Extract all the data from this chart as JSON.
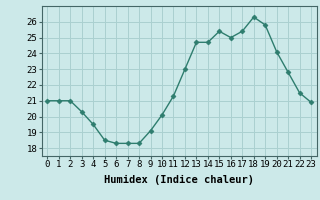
{
  "x": [
    0,
    1,
    2,
    3,
    4,
    5,
    6,
    7,
    8,
    9,
    10,
    11,
    12,
    13,
    14,
    15,
    16,
    17,
    18,
    19,
    20,
    21,
    22,
    23
  ],
  "y": [
    21,
    21,
    21,
    20.3,
    19.5,
    18.5,
    18.3,
    18.3,
    18.3,
    19.1,
    20.1,
    21.3,
    23.0,
    24.7,
    24.7,
    25.4,
    25.0,
    25.4,
    26.3,
    25.8,
    24.1,
    22.8,
    21.5,
    20.9
  ],
  "line_color": "#2e7d6e",
  "marker": "D",
  "marker_size": 2.5,
  "bg_color": "#cce9e9",
  "grid_color": "#aad0d0",
  "xlabel": "Humidex (Indice chaleur)",
  "ylim": [
    17.5,
    27.0
  ],
  "xlim": [
    -0.5,
    23.5
  ],
  "yticks": [
    18,
    19,
    20,
    21,
    22,
    23,
    24,
    25,
    26
  ],
  "xticks": [
    0,
    1,
    2,
    3,
    4,
    5,
    6,
    7,
    8,
    9,
    10,
    11,
    12,
    13,
    14,
    15,
    16,
    17,
    18,
    19,
    20,
    21,
    22,
    23
  ],
  "xtick_labels": [
    "0",
    "1",
    "2",
    "3",
    "4",
    "5",
    "6",
    "7",
    "8",
    "9",
    "10",
    "11",
    "12",
    "13",
    "14",
    "15",
    "16",
    "17",
    "18",
    "19",
    "20",
    "21",
    "22",
    "23"
  ],
  "xlabel_fontsize": 7.5,
  "tick_fontsize": 6.5,
  "line_width": 1.0,
  "spine_color": "#446666"
}
